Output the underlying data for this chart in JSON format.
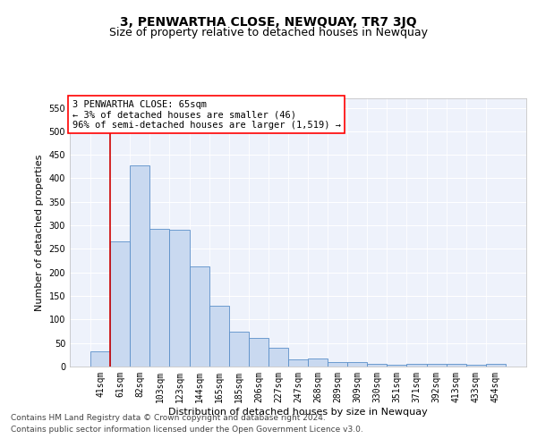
{
  "title": "3, PENWARTHA CLOSE, NEWQUAY, TR7 3JQ",
  "subtitle": "Size of property relative to detached houses in Newquay",
  "xlabel": "Distribution of detached houses by size in Newquay",
  "ylabel": "Number of detached properties",
  "categories": [
    "41sqm",
    "61sqm",
    "82sqm",
    "103sqm",
    "123sqm",
    "144sqm",
    "165sqm",
    "185sqm",
    "206sqm",
    "227sqm",
    "247sqm",
    "268sqm",
    "289sqm",
    "309sqm",
    "330sqm",
    "351sqm",
    "371sqm",
    "392sqm",
    "413sqm",
    "433sqm",
    "454sqm"
  ],
  "values": [
    32,
    266,
    427,
    293,
    291,
    213,
    130,
    75,
    60,
    40,
    15,
    18,
    10,
    10,
    5,
    3,
    6,
    5,
    5,
    3,
    6
  ],
  "bar_color": "#c9d9f0",
  "bar_edge_color": "#5b8fc9",
  "vline_color": "#cc0000",
  "annotation_box_text": "3 PENWARTHA CLOSE: 65sqm\n← 3% of detached houses are smaller (46)\n96% of semi-detached houses are larger (1,519) →",
  "ylim": [
    0,
    570
  ],
  "yticks": [
    0,
    50,
    100,
    150,
    200,
    250,
    300,
    350,
    400,
    450,
    500,
    550
  ],
  "bg_color": "#eef2fb",
  "footer_line1": "Contains HM Land Registry data © Crown copyright and database right 2024.",
  "footer_line2": "Contains public sector information licensed under the Open Government Licence v3.0.",
  "title_fontsize": 10,
  "subtitle_fontsize": 9,
  "xlabel_fontsize": 8,
  "ylabel_fontsize": 8,
  "annotation_fontsize": 7.5,
  "footer_fontsize": 6.5,
  "tick_fontsize": 7
}
